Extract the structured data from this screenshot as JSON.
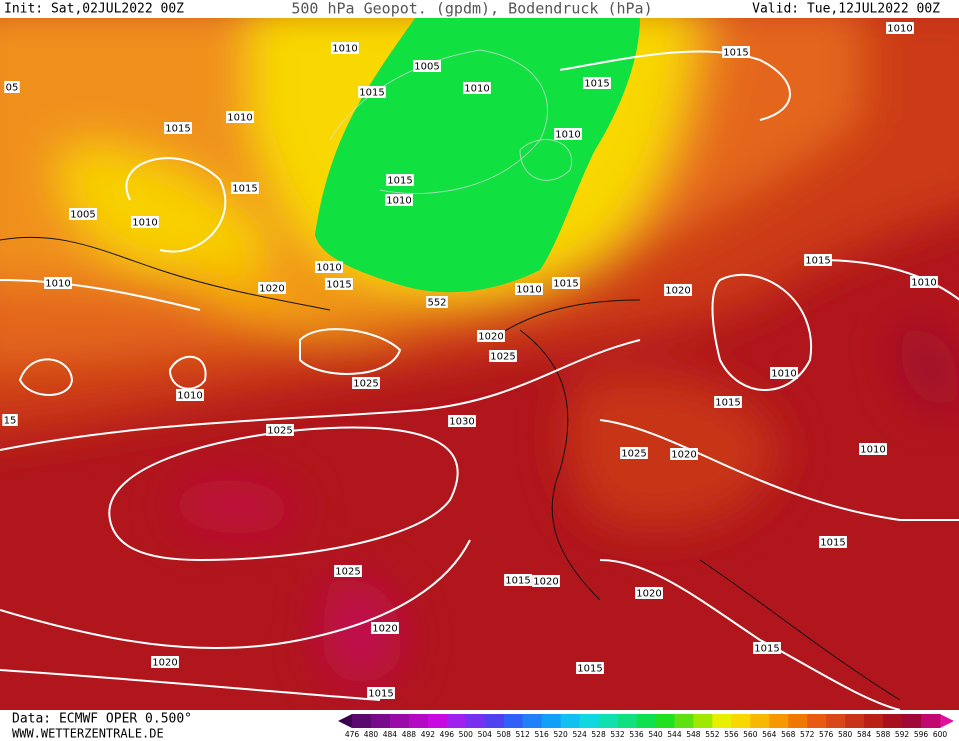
{
  "header": {
    "init": "Init: Sat,02JUL2022 00Z",
    "title": "500 hPa Geopot. (gpdm), Bodendruck (hPa)",
    "valid": "Valid: Tue,12JUL2022 00Z"
  },
  "footer": {
    "source": "Data: ECMWF OPER 0.500°",
    "website": "WWW.WETTERZENTRALE.DE"
  },
  "map": {
    "contour_labels": [
      "1010",
      "1005",
      "1015",
      "1010",
      "1015",
      "1015",
      "1010",
      "05",
      "1015",
      "1010",
      "1010",
      "1015",
      "1015",
      "1010",
      "1005",
      "1010",
      "1010",
      "1010",
      "1015",
      "1020",
      "552",
      "1010",
      "1015",
      "1020",
      "1015",
      "1010",
      "1020",
      "1025",
      "1010",
      "1025",
      "1010",
      "1015",
      "15",
      "1030",
      "1025",
      "1025",
      "1020",
      "1010",
      "1015",
      "1025",
      "1015",
      "1020",
      "1020",
      "1020",
      "1015",
      "1020",
      "1015",
      "1015"
    ]
  },
  "legend": {
    "values": [
      476,
      480,
      484,
      488,
      492,
      496,
      500,
      504,
      508,
      512,
      516,
      520,
      524,
      528,
      532,
      536,
      540,
      544,
      548,
      552,
      556,
      560,
      564,
      568,
      572,
      576,
      580,
      584,
      588,
      592,
      596,
      600
    ],
    "colors": [
      "#5a0a6e",
      "#7a0a8c",
      "#9a0aa8",
      "#b40ac4",
      "#c80ae0",
      "#a020f0",
      "#7830f0",
      "#5040f0",
      "#3060f8",
      "#2080f8",
      "#10a0f8",
      "#10c0f0",
      "#10d8e0",
      "#10e0b0",
      "#10e080",
      "#10e050",
      "#20e020",
      "#60e010",
      "#a0e800",
      "#e8f000",
      "#f8d800",
      "#f8b800",
      "#f89800",
      "#f07800",
      "#e85a10",
      "#d84818",
      "#c83418",
      "#b82018",
      "#a81020",
      "#a00838",
      "#c00870"
    ],
    "arrow_low": "#3c0050",
    "arrow_high": "#e010a0"
  }
}
